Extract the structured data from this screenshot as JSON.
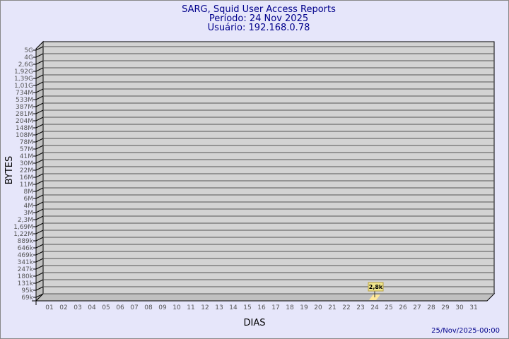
{
  "chart_data": {
    "type": "bar",
    "title": [
      "SARG, Squid User Access Reports",
      "Período: 24 Nov 2025",
      "Usuário: 192.168.0.78"
    ],
    "xlabel": "DIAS",
    "ylabel": "BYTES",
    "yscale": "log",
    "ytick_labels": [
      "5G",
      "4G",
      "2,6G",
      "1,92G",
      "1,39G",
      "1,01G",
      "734M",
      "533M",
      "387M",
      "281M",
      "204M",
      "148M",
      "108M",
      "78M",
      "57M",
      "41M",
      "30M",
      "22M",
      "16M",
      "11M",
      "8M",
      "6M",
      "4M",
      "3M",
      "2,3M",
      "1,69M",
      "1,22M",
      "889k",
      "646k",
      "469k",
      "341k",
      "247k",
      "180k",
      "131k",
      "95k",
      "69k"
    ],
    "categories": [
      "01",
      "02",
      "03",
      "04",
      "05",
      "06",
      "07",
      "08",
      "09",
      "10",
      "11",
      "12",
      "13",
      "14",
      "15",
      "16",
      "17",
      "18",
      "19",
      "20",
      "21",
      "22",
      "23",
      "24",
      "25",
      "26",
      "27",
      "28",
      "29",
      "30",
      "31"
    ],
    "bars": [
      {
        "category": "24",
        "value": 2800,
        "label": "2,8k"
      }
    ],
    "grid": true,
    "footer": "25/Nov/2025-00:00",
    "colors": {
      "background": "#e6e6fa",
      "plot": "#d3d3d3",
      "bar": "#ffe89a",
      "title": "#00008b",
      "label_box": "#f0e68c"
    }
  }
}
